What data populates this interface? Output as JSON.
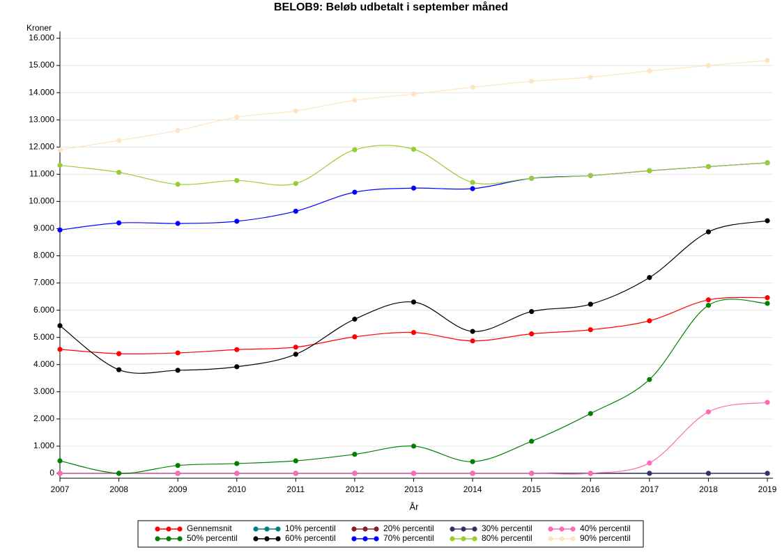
{
  "chart_data": {
    "type": "line",
    "title": "BELOB9: Beløb udbetalt i september måned",
    "y_label": "Kroner",
    "x_label": "År",
    "x": [
      2007,
      2008,
      2009,
      2010,
      2011,
      2012,
      2013,
      2014,
      2015,
      2016,
      2017,
      2018,
      2019
    ],
    "xlim": [
      2007,
      2019
    ],
    "xticks": [
      2007,
      2008,
      2009,
      2010,
      2011,
      2012,
      2013,
      2014,
      2015,
      2016,
      2017,
      2018,
      2019
    ],
    "ylim": [
      0,
      16000
    ],
    "yticks": [
      0,
      {
        "value": 1000,
        "label": "1.000"
      },
      {
        "value": 2000,
        "label": "2.000"
      },
      {
        "value": 3000,
        "label": "3.000"
      },
      {
        "value": 4000,
        "label": "4.000"
      },
      {
        "value": 5000,
        "label": "5.000"
      },
      {
        "value": 6000,
        "label": "6.000"
      },
      {
        "value": 7000,
        "label": "7.000"
      },
      {
        "value": 8000,
        "label": "8.000"
      },
      {
        "value": 9000,
        "label": "9.000"
      },
      {
        "value": 10000,
        "label": "10.000"
      },
      {
        "value": 11000,
        "label": "11.000"
      },
      {
        "value": 12000,
        "label": "12.000"
      },
      {
        "value": 13000,
        "label": "13.000"
      },
      {
        "value": 14000,
        "label": "14.000"
      },
      {
        "value": 15000,
        "label": "15.000"
      },
      {
        "value": 16000,
        "label": "16.000"
      }
    ],
    "grid": true,
    "legend": "bottom",
    "series": [
      {
        "name": "Gennemsnit",
        "color": "#ff0000",
        "values": [
          4560,
          4400,
          4430,
          4550,
          4640,
          5020,
          5180,
          4870,
          5130,
          5280,
          5610,
          6380,
          6460
        ]
      },
      {
        "name": "10% percentil",
        "color": "#008080",
        "values": [
          0,
          0,
          0,
          0,
          0,
          0,
          0,
          0,
          0,
          0,
          0,
          0,
          0
        ]
      },
      {
        "name": "20% percentil",
        "color": "#8b1a2b",
        "values": [
          0,
          0,
          0,
          0,
          0,
          0,
          0,
          0,
          0,
          0,
          0,
          0,
          0
        ]
      },
      {
        "name": "30% percentil",
        "color": "#333366",
        "values": [
          0,
          0,
          0,
          0,
          0,
          0,
          0,
          0,
          0,
          0,
          0,
          0,
          0
        ]
      },
      {
        "name": "40% percentil",
        "color": "#ff69b4",
        "values": [
          0,
          0,
          0,
          0,
          0,
          0,
          0,
          0,
          0,
          0,
          380,
          2260,
          2610
        ]
      },
      {
        "name": "50% percentil",
        "color": "#008000",
        "values": [
          460,
          0,
          290,
          360,
          460,
          700,
          1000,
          430,
          1180,
          2200,
          3450,
          6180,
          6250
        ]
      },
      {
        "name": "60% percentil",
        "color": "#000000",
        "values": [
          5430,
          3810,
          3790,
          3920,
          4380,
          5670,
          6300,
          5220,
          5950,
          6220,
          7200,
          8880,
          9290
        ]
      },
      {
        "name": "70% percentil",
        "color": "#0000ff",
        "values": [
          8950,
          9210,
          9190,
          9270,
          9640,
          10340,
          10490,
          10470,
          10850,
          10950,
          11130,
          11280,
          11420
        ]
      },
      {
        "name": "80% percentil",
        "color": "#99cc33",
        "values": [
          11330,
          11070,
          10630,
          10770,
          10660,
          11900,
          11920,
          10700,
          10850,
          10950,
          11130,
          11280,
          11420
        ]
      },
      {
        "name": "90% percentil",
        "color": "#ffe4c4",
        "values": [
          11900,
          12240,
          12610,
          13100,
          13330,
          13720,
          13950,
          14200,
          14420,
          14570,
          14800,
          15000,
          15180
        ]
      }
    ]
  }
}
